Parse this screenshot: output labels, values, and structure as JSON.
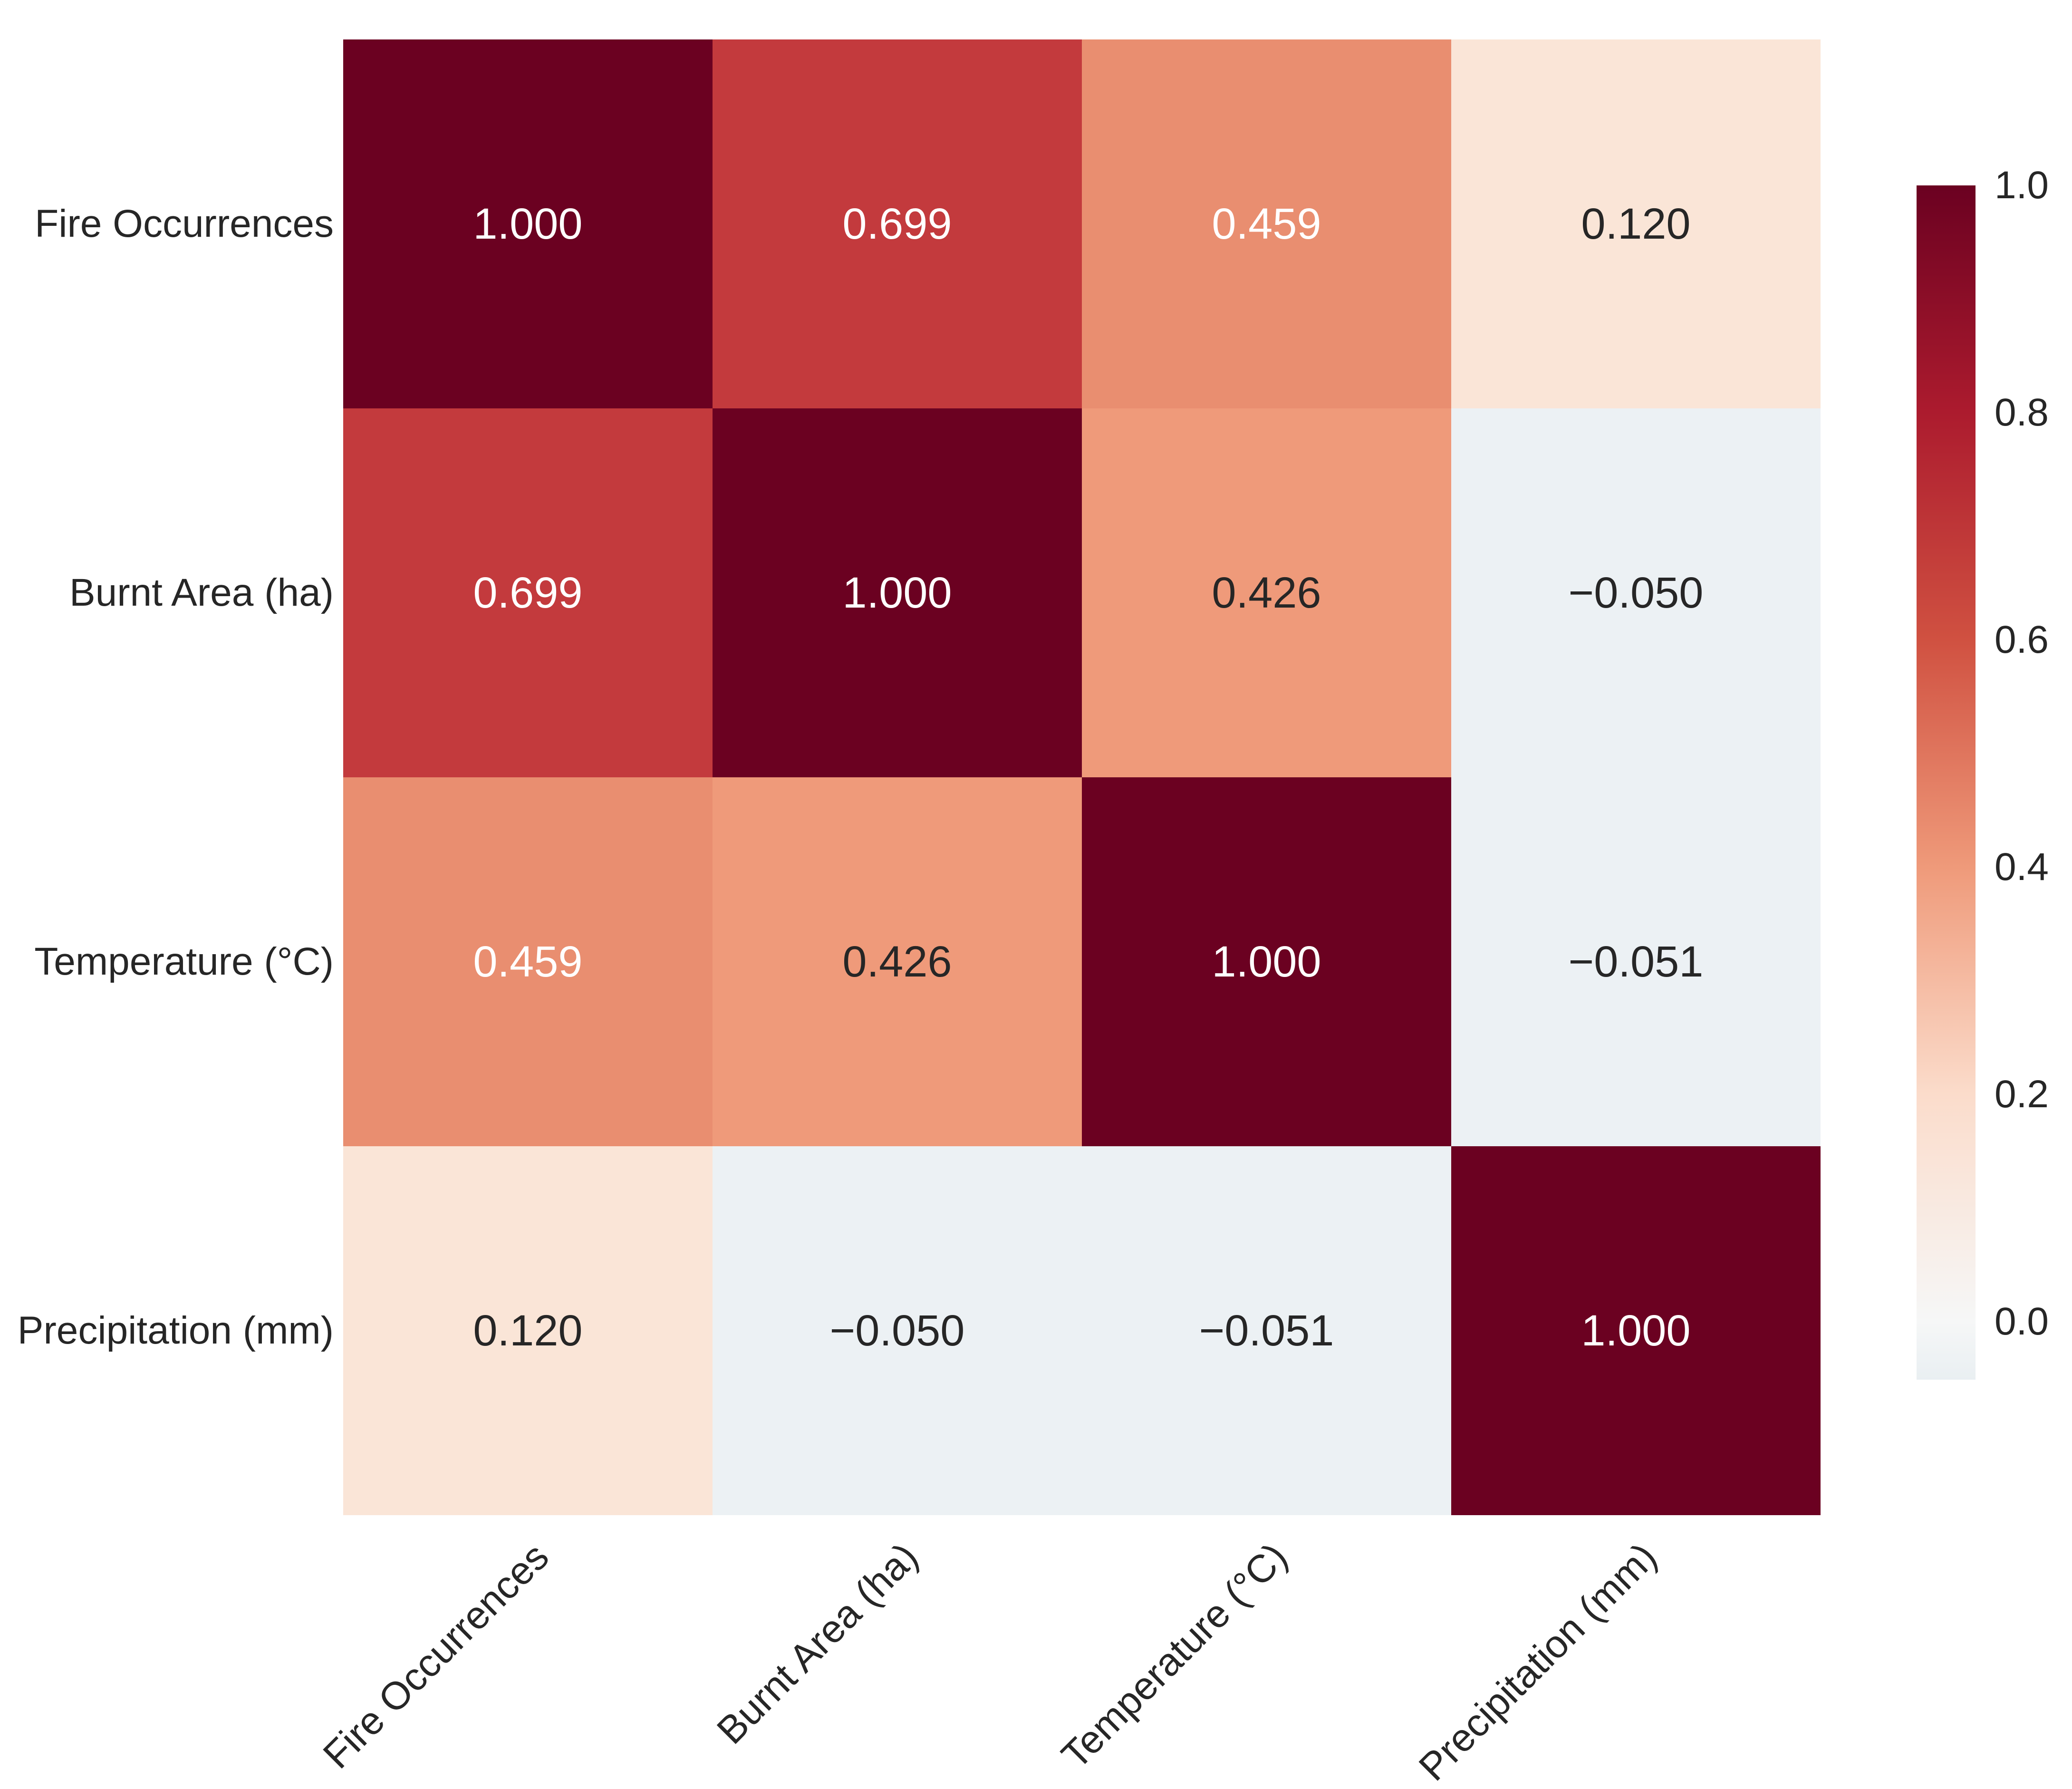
{
  "background_color": "#ffffff",
  "chart_data": {
    "type": "heatmap",
    "title": "",
    "xlabel": "",
    "ylabel": "",
    "categories": [
      "Fire Occurrences",
      "Burnt Area (ha)",
      "Temperature (°C)",
      "Precipitation (mm)"
    ],
    "matrix": [
      [
        1.0,
        0.699,
        0.459,
        0.12
      ],
      [
        0.699,
        1.0,
        0.426,
        -0.05
      ],
      [
        0.459,
        0.426,
        1.0,
        -0.051
      ],
      [
        0.12,
        -0.05,
        -0.051,
        1.0
      ]
    ],
    "cell_labels": [
      [
        "1.000",
        "0.699",
        "0.459",
        "0.120"
      ],
      [
        "0.699",
        "1.000",
        "0.426",
        "−0.050"
      ],
      [
        "0.459",
        "0.426",
        "1.000",
        "−0.051"
      ],
      [
        "0.120",
        "−0.050",
        "−0.051",
        "1.000"
      ]
    ],
    "cell_colors": [
      [
        "#6b0121",
        "#c33a3d",
        "#e98e70",
        "#fae5d7"
      ],
      [
        "#c33a3d",
        "#6b0121",
        "#ef9a7a",
        "#ecf1f4"
      ],
      [
        "#e98e70",
        "#ef9a7a",
        "#6b0121",
        "#ecf1f4"
      ],
      [
        "#fae5d7",
        "#ecf1f4",
        "#ecf1f4",
        "#6b0121"
      ]
    ],
    "cell_text_colors": [
      [
        "#ffffff",
        "#ffffff",
        "#ffffff",
        "#262626"
      ],
      [
        "#ffffff",
        "#ffffff",
        "#262626",
        "#262626"
      ],
      [
        "#ffffff",
        "#262626",
        "#ffffff",
        "#262626"
      ],
      [
        "#262626",
        "#262626",
        "#262626",
        "#ffffff"
      ]
    ],
    "grid_on": false,
    "legend": "colorbar",
    "colorbar": {
      "position": "right",
      "vmin": -0.051,
      "vmax": 1.0,
      "tick_labels": [
        "1.0",
        "0.8",
        "0.6",
        "0.4",
        "0.2",
        "0.0"
      ],
      "tick_values": [
        1.0,
        0.8,
        0.6,
        0.4,
        0.2,
        0.0
      ],
      "gradient_stops": [
        {
          "pos": 0.0,
          "color": "#6b0121"
        },
        {
          "pos": 0.19,
          "color": "#ac1b2e"
        },
        {
          "pos": 0.381,
          "color": "#d05141"
        },
        {
          "pos": 0.571,
          "color": "#ef9a7a"
        },
        {
          "pos": 0.761,
          "color": "#fbdccb"
        },
        {
          "pos": 0.951,
          "color": "#f6f7f7"
        },
        {
          "pos": 1.0,
          "color": "#e9eff2"
        }
      ]
    }
  }
}
